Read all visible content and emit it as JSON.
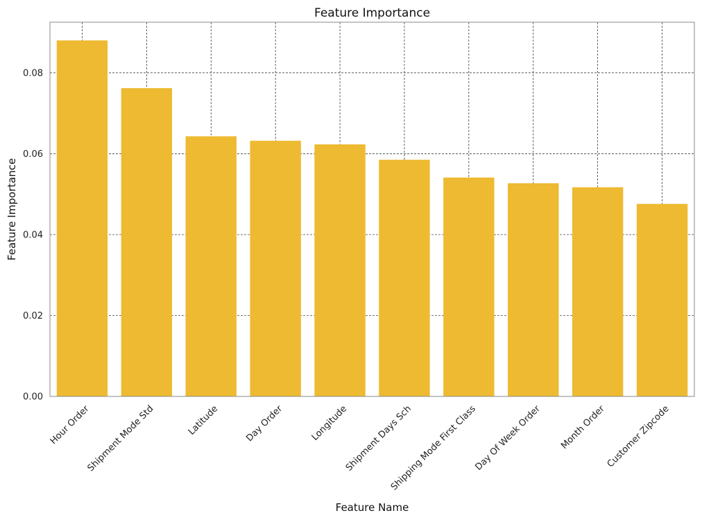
{
  "chart_data": {
    "type": "bar",
    "title": "Feature Importance",
    "xlabel": "Feature Name",
    "ylabel": "Feature Importance",
    "categories": [
      "Hour Order",
      "Shipment Mode Std",
      "Latitude",
      "Day Order",
      "Longitude",
      "Shipment Days Sch",
      "Shipping Mode First Class",
      "Day Of Week Order",
      "Month Order",
      "Customer Zipcode"
    ],
    "values": [
      0.088,
      0.0762,
      0.0643,
      0.0632,
      0.0623,
      0.0585,
      0.0541,
      0.0527,
      0.0517,
      0.0476
    ],
    "ylim": [
      0,
      0.0925
    ],
    "yticks": [
      0.0,
      0.02,
      0.04,
      0.06,
      0.08
    ],
    "ytick_labels": [
      "0.00",
      "0.02",
      "0.04",
      "0.06",
      "0.08"
    ],
    "grid": true,
    "bar_color": "#EDBA31",
    "grid_color": "#222222"
  }
}
